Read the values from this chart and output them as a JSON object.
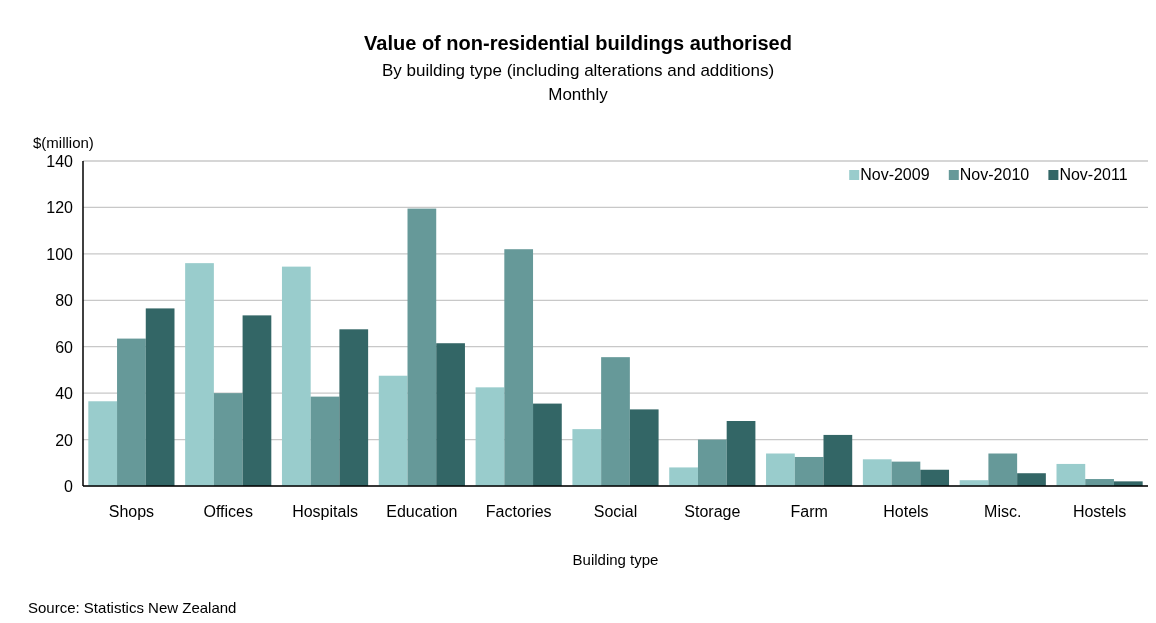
{
  "chart_data": {
    "type": "bar",
    "title": "Value of non-residential buildings authorised",
    "subtitle": "By building type (including alterations and additions)\nMonthly",
    "xlabel": "Building type",
    "ylabel": "$(million)",
    "categories": [
      "Shops",
      "Offices",
      "Hospitals",
      "Education",
      "Factories",
      "Social",
      "Storage",
      "Farm",
      "Hotels",
      "Misc.",
      "Hostels"
    ],
    "series": [
      {
        "name": "Nov-2009",
        "color": "#99cccc",
        "values": [
          36.5,
          96,
          94.5,
          47.5,
          42.5,
          24.5,
          8,
          14,
          11.5,
          2.5,
          9.5
        ]
      },
      {
        "name": "Nov-2010",
        "color": "#669999",
        "values": [
          63.5,
          40,
          38.5,
          119.5,
          102,
          55.5,
          20,
          12.5,
          10.5,
          14,
          3
        ]
      },
      {
        "name": "Nov-2011",
        "color": "#336666",
        "values": [
          76.5,
          73.5,
          67.5,
          61.5,
          35.5,
          33,
          28,
          22,
          7,
          5.5,
          2
        ]
      }
    ],
    "ylim": [
      0,
      140
    ],
    "yticks": [
      0,
      20,
      40,
      60,
      80,
      100,
      120,
      140
    ],
    "grid": "y",
    "legend": "top right",
    "annotations": [
      "Source: Statistics New Zealand"
    ]
  }
}
